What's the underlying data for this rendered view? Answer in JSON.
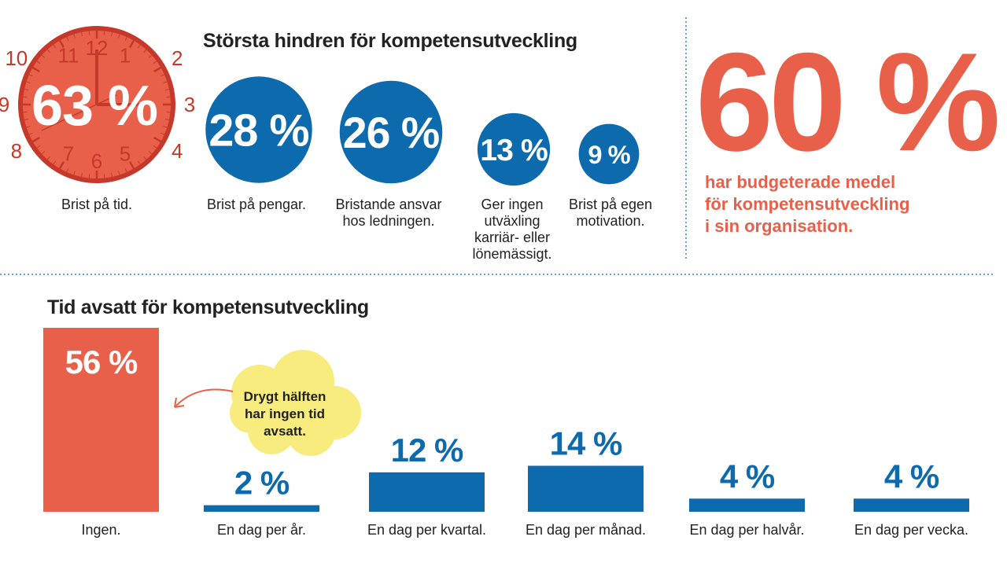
{
  "colors": {
    "orange": "#e8604a",
    "blue": "#0d6aad",
    "clock_rim": "#c6392a",
    "cloud": "#f9ec7e"
  },
  "chart_data": [
    {
      "type": "bubble",
      "title": "Största hindren för kompetensutveckling",
      "categories": [
        "Brist på tid.",
        "Brist på pengar.",
        "Bristande ansvar hos ledningen.",
        "Ger ingen utväxling karriär- eller lönemässigt.",
        "Brist på egen motivation."
      ],
      "values": [
        63,
        28,
        26,
        13,
        9
      ],
      "value_labels": [
        "63 %",
        "28 %",
        "26 %",
        "13 %",
        "9 %"
      ],
      "label_lines": [
        [
          "Brist på tid."
        ],
        [
          "Brist på pengar."
        ],
        [
          "Bristande ansvar",
          "hos ledningen."
        ],
        [
          "Ger ingen",
          "utväxling",
          "karriär- eller",
          "lönemässigt."
        ],
        [
          "Brist på egen",
          "motivation."
        ]
      ]
    },
    {
      "type": "bar",
      "title": "Tid avsatt för kompetensutveckling",
      "categories": [
        "Ingen.",
        "En dag per år.",
        "En dag per kvartal.",
        "En dag per månad.",
        "En dag per halvår.",
        "En dag per vecka."
      ],
      "values": [
        56,
        2,
        12,
        14,
        4,
        4
      ],
      "value_labels": [
        "56 %",
        "2 %",
        "12 %",
        "14 %",
        "4 %",
        "4 %"
      ],
      "annotation": [
        "Drygt hälften",
        "har ingen tid",
        "avsatt."
      ]
    }
  ],
  "highlight": {
    "value": "60 %",
    "text": [
      "har budgeterade medel",
      "för kompetensutveckling",
      "i sin organisation."
    ]
  },
  "clock_numbers": [
    "12",
    "1",
    "2",
    "3",
    "4",
    "5",
    "6",
    "7",
    "8",
    "9",
    "10",
    "11"
  ]
}
